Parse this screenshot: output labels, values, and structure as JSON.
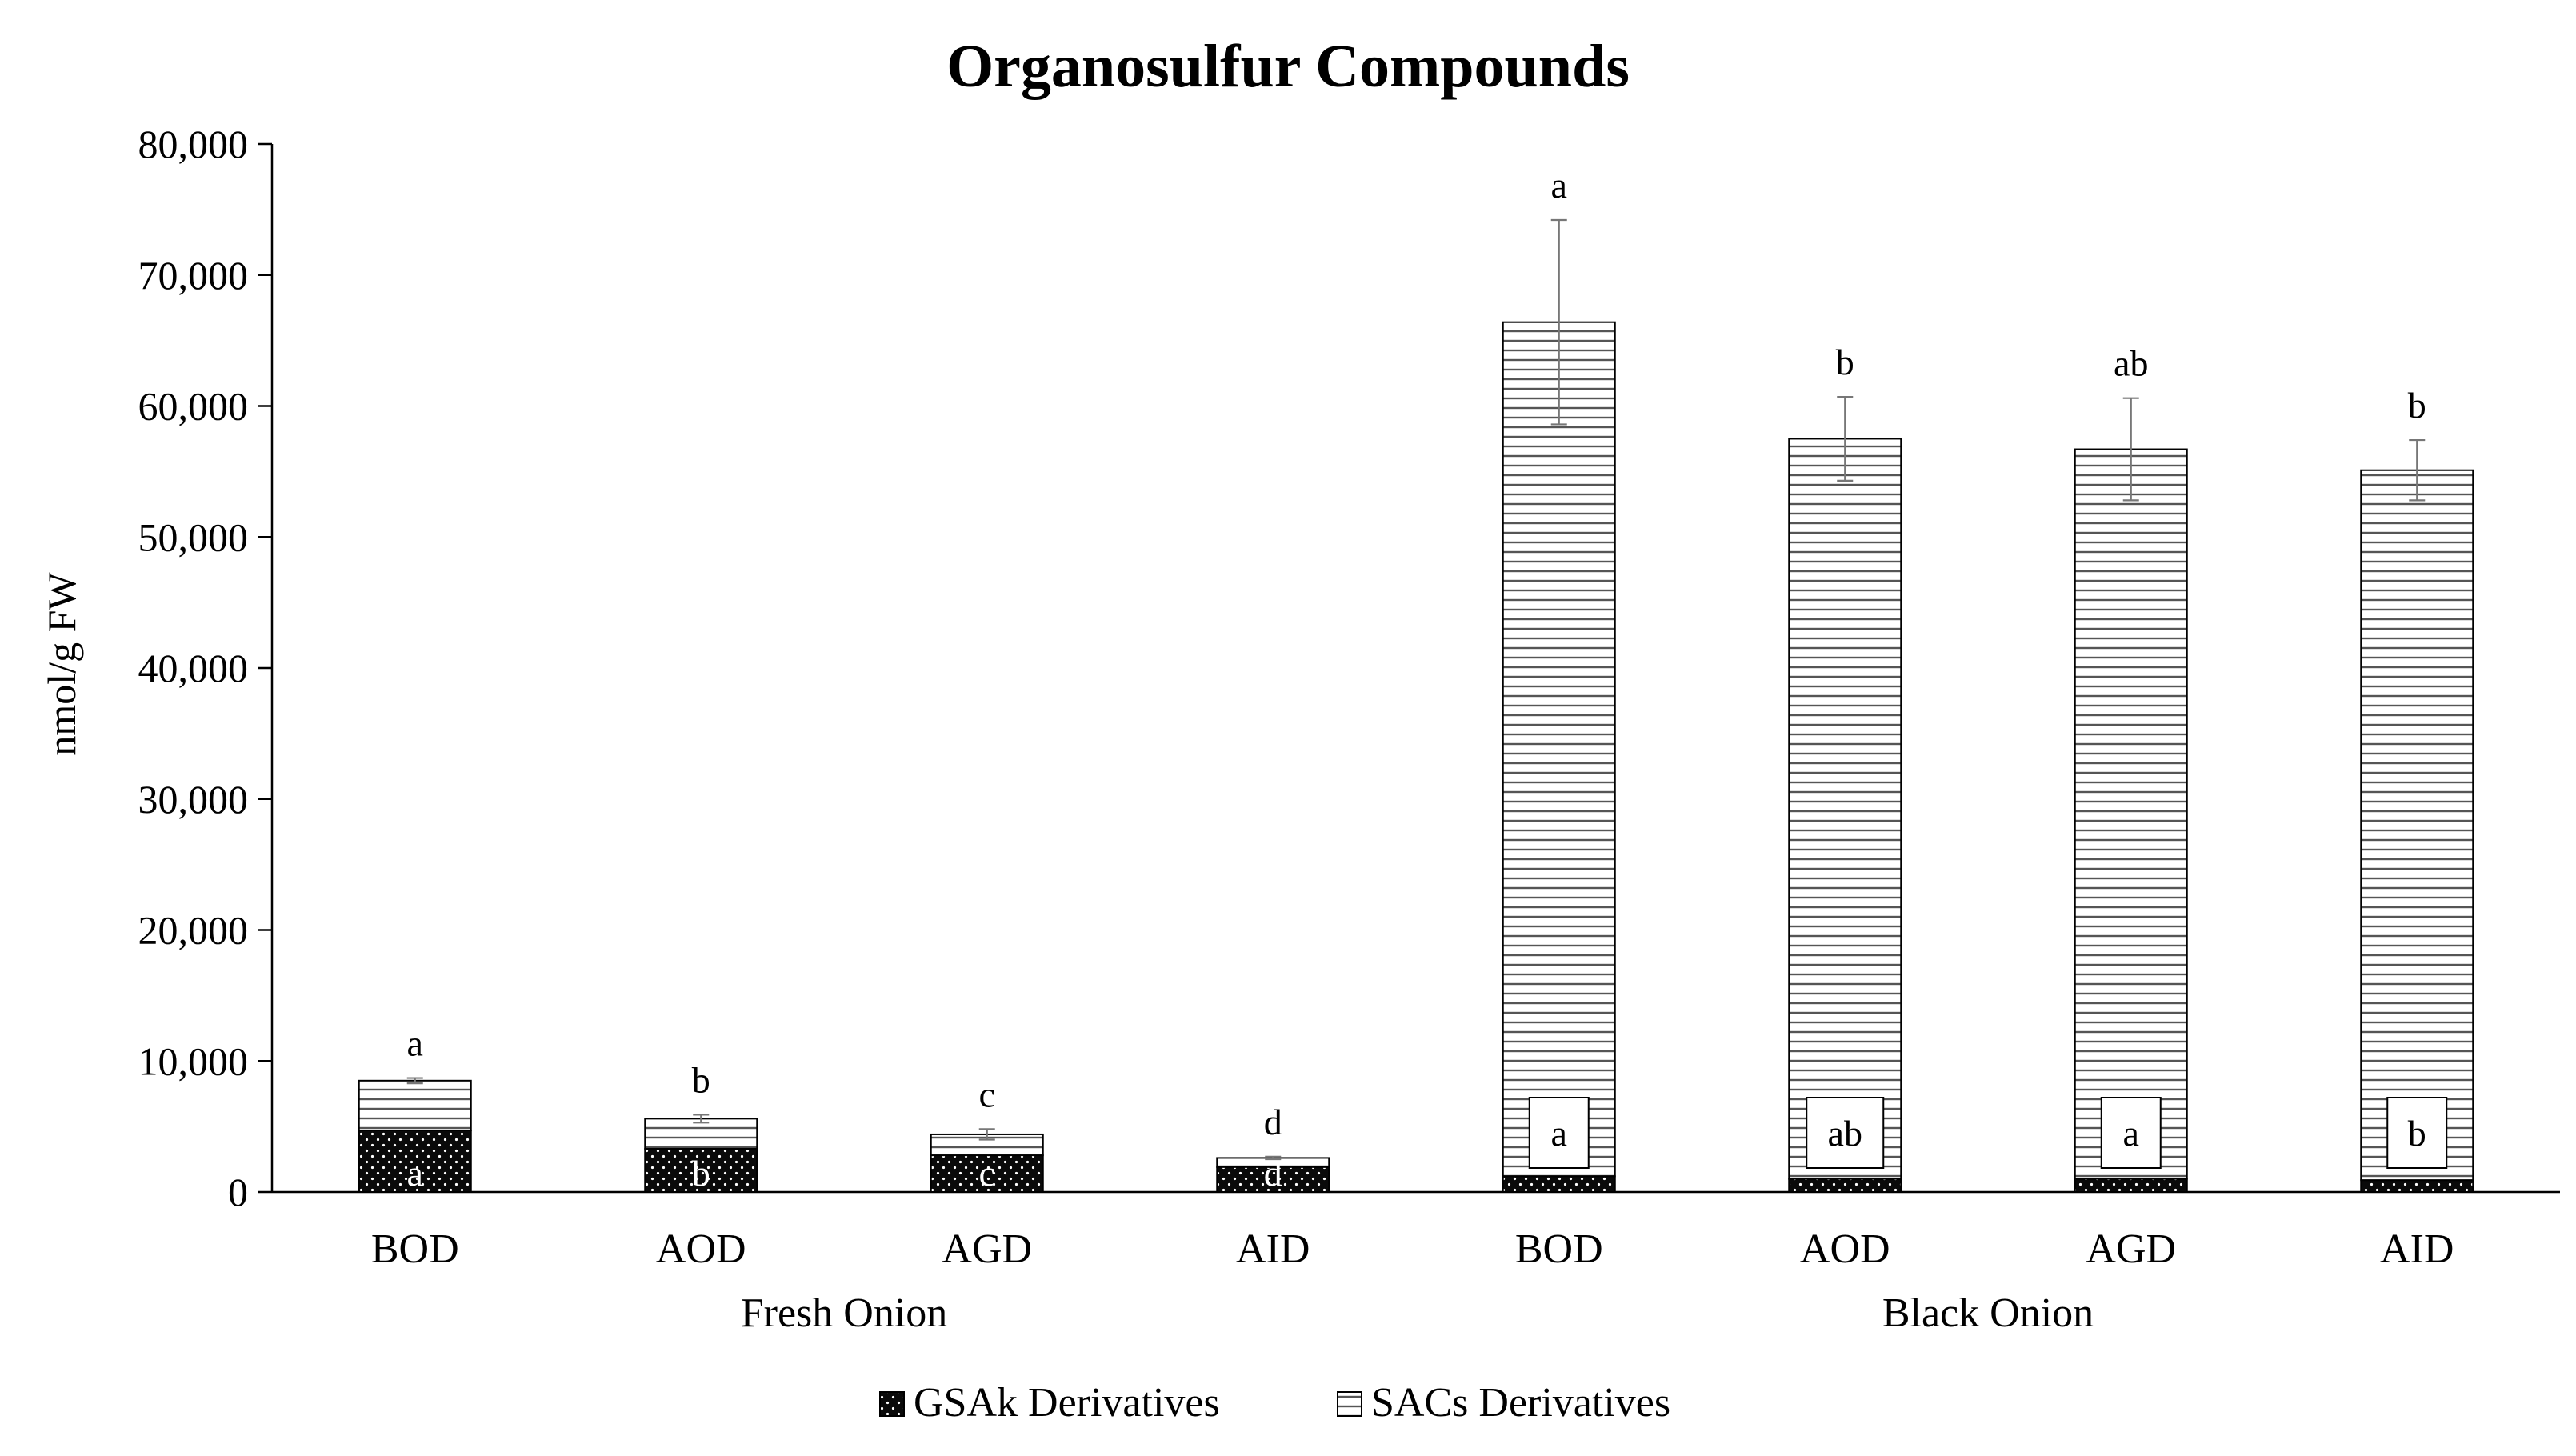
{
  "chart_data": {
    "type": "bar",
    "stacked": true,
    "title": "Organosulfur Compounds",
    "ylabel": "nmol/g FW",
    "xlabel": "",
    "ylim": [
      0,
      80000
    ],
    "yticks": [
      0,
      10000,
      20000,
      30000,
      40000,
      50000,
      60000,
      70000,
      80000
    ],
    "ytick_labels": [
      "0",
      "10,000",
      "20,000",
      "30,000",
      "40,000",
      "50,000",
      "60,000",
      "70,000",
      "80,000"
    ],
    "grid": false,
    "legend_position": "bottom-center",
    "categories": [
      "BOD",
      "AOD",
      "AGD",
      "AID",
      "BOD",
      "AOD",
      "AGD",
      "AID"
    ],
    "groups": [
      {
        "label": "Fresh Onion",
        "span": [
          0,
          3
        ]
      },
      {
        "label": "Black Onion",
        "span": [
          4,
          7
        ]
      }
    ],
    "series": [
      {
        "name": "GSAk Derivatives",
        "pattern": "dots-on-black",
        "values": [
          4700,
          3300,
          2800,
          1900,
          1200,
          1000,
          1000,
          900
        ],
        "letters": [
          "a",
          "b",
          "c",
          "d",
          "a",
          "ab",
          "a",
          "b"
        ]
      },
      {
        "name": "SACs Derivatives",
        "pattern": "horizontal-lines",
        "values": [
          3800,
          2300,
          1600,
          700,
          65200,
          56500,
          55700,
          54200
        ],
        "error": [
          200,
          300,
          400,
          100,
          7800,
          3200,
          3900,
          2300
        ],
        "letters": [
          "a",
          "b",
          "c",
          "d",
          "a",
          "b",
          "ab",
          "b"
        ]
      }
    ]
  }
}
